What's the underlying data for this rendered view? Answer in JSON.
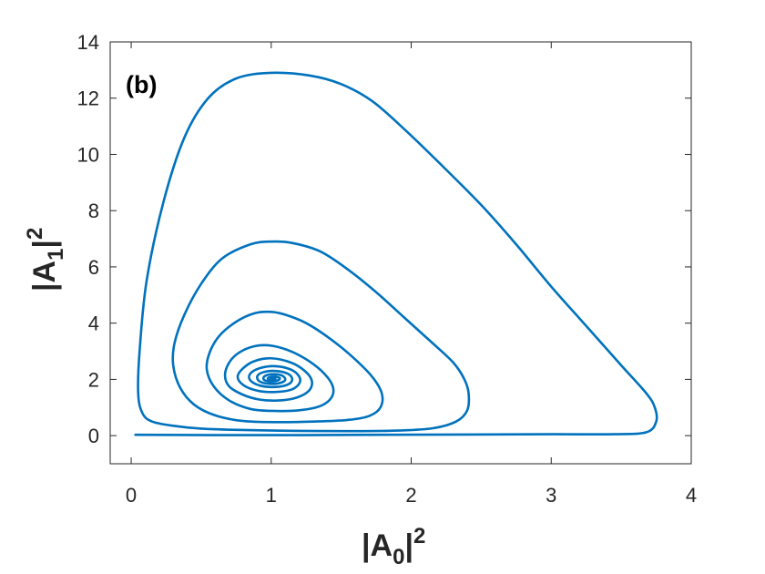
{
  "chart_data": {
    "type": "line",
    "panel_label": "(b)",
    "xlabel": {
      "base": "|A",
      "sub": "0",
      "tail": "|",
      "sup": "2"
    },
    "ylabel": {
      "base": "|A",
      "sub": "1",
      "tail": "|",
      "sup": "2"
    },
    "xlim": [
      -0.15,
      4
    ],
    "ylim": [
      -1,
      14
    ],
    "xticks": [
      0,
      1,
      2,
      3,
      4
    ],
    "yticks": [
      0,
      2,
      4,
      6,
      8,
      10,
      12,
      14
    ],
    "xtick_labels": [
      "0",
      "1",
      "2",
      "3",
      "4"
    ],
    "ytick_labels": [
      "0",
      "2",
      "4",
      "6",
      "8",
      "10",
      "12",
      "14"
    ],
    "grid": false,
    "line_color": "#0072BD",
    "series": [
      {
        "points": [
          [
            0.03,
            0.03
          ],
          [
            0.6,
            0.02
          ],
          [
            1.2,
            0.02
          ],
          [
            1.8,
            0.03
          ],
          [
            2.4,
            0.04
          ],
          [
            3.0,
            0.05
          ],
          [
            3.45,
            0.05
          ],
          [
            3.68,
            0.12
          ],
          [
            3.75,
            0.5
          ],
          [
            3.74,
            1.0
          ],
          [
            3.68,
            1.5
          ],
          [
            3.5,
            2.5
          ],
          [
            3.25,
            3.9
          ],
          [
            3.0,
            5.3
          ],
          [
            2.75,
            6.8
          ],
          [
            2.5,
            8.2
          ],
          [
            2.2,
            9.7
          ],
          [
            1.95,
            10.9
          ],
          [
            1.72,
            11.9
          ],
          [
            1.5,
            12.5
          ],
          [
            1.28,
            12.8
          ],
          [
            1.0,
            12.9
          ],
          [
            0.75,
            12.7
          ],
          [
            0.55,
            12.0
          ],
          [
            0.38,
            10.6
          ],
          [
            0.23,
            8.3
          ],
          [
            0.11,
            5.5
          ],
          [
            0.06,
            3.0
          ],
          [
            0.05,
            1.5
          ],
          [
            0.08,
            0.8
          ],
          [
            0.15,
            0.5
          ],
          [
            0.3,
            0.35
          ],
          [
            0.5,
            0.25
          ],
          [
            0.8,
            0.2
          ],
          [
            1.2,
            0.17
          ],
          [
            1.6,
            0.16
          ],
          [
            1.9,
            0.18
          ],
          [
            2.15,
            0.26
          ],
          [
            2.32,
            0.5
          ],
          [
            2.4,
            0.9
          ],
          [
            2.41,
            1.5
          ],
          [
            2.38,
            2.0
          ],
          [
            2.3,
            2.6
          ],
          [
            2.15,
            3.3
          ],
          [
            1.95,
            4.2
          ],
          [
            1.75,
            5.1
          ],
          [
            1.55,
            5.9
          ],
          [
            1.35,
            6.55
          ],
          [
            1.15,
            6.85
          ],
          [
            1.0,
            6.9
          ],
          [
            0.85,
            6.8
          ],
          [
            0.65,
            6.3
          ],
          [
            0.5,
            5.4
          ],
          [
            0.38,
            4.3
          ],
          [
            0.31,
            3.3
          ],
          [
            0.3,
            2.5
          ],
          [
            0.35,
            1.7
          ],
          [
            0.45,
            1.1
          ],
          [
            0.6,
            0.72
          ],
          [
            0.8,
            0.52
          ],
          [
            1.05,
            0.48
          ],
          [
            1.3,
            0.5
          ],
          [
            1.55,
            0.56
          ],
          [
            1.7,
            0.7
          ],
          [
            1.78,
            1.0
          ],
          [
            1.79,
            1.5
          ],
          [
            1.72,
            2.1
          ],
          [
            1.58,
            2.8
          ],
          [
            1.42,
            3.45
          ],
          [
            1.25,
            4.0
          ],
          [
            1.1,
            4.3
          ],
          [
            1.0,
            4.4
          ],
          [
            0.88,
            4.35
          ],
          [
            0.75,
            4.05
          ],
          [
            0.63,
            3.55
          ],
          [
            0.56,
            2.95
          ],
          [
            0.54,
            2.35
          ],
          [
            0.59,
            1.75
          ],
          [
            0.7,
            1.25
          ],
          [
            0.85,
            0.95
          ],
          [
            1.0,
            0.88
          ],
          [
            1.2,
            0.9
          ],
          [
            1.35,
            1.05
          ],
          [
            1.43,
            1.35
          ],
          [
            1.44,
            1.75
          ],
          [
            1.38,
            2.2
          ],
          [
            1.27,
            2.65
          ],
          [
            1.14,
            3.0
          ],
          [
            1.0,
            3.2
          ],
          [
            0.88,
            3.18
          ],
          [
            0.77,
            2.95
          ],
          [
            0.7,
            2.6
          ],
          [
            0.67,
            2.15
          ],
          [
            0.7,
            1.75
          ],
          [
            0.8,
            1.45
          ],
          [
            0.92,
            1.28
          ],
          [
            1.05,
            1.25
          ],
          [
            1.18,
            1.35
          ],
          [
            1.27,
            1.6
          ],
          [
            1.29,
            1.95
          ],
          [
            1.24,
            2.3
          ],
          [
            1.14,
            2.6
          ],
          [
            1.0,
            2.75
          ],
          [
            0.88,
            2.65
          ],
          [
            0.8,
            2.4
          ],
          [
            0.76,
            2.1
          ],
          [
            0.8,
            1.8
          ],
          [
            0.9,
            1.6
          ],
          [
            1.02,
            1.55
          ],
          [
            1.14,
            1.63
          ],
          [
            1.2,
            1.85
          ],
          [
            1.2,
            2.1
          ],
          [
            1.14,
            2.35
          ],
          [
            1.03,
            2.47
          ],
          [
            0.92,
            2.4
          ],
          [
            0.85,
            2.2
          ],
          [
            0.85,
            1.97
          ],
          [
            0.92,
            1.78
          ],
          [
            1.03,
            1.73
          ],
          [
            1.12,
            1.82
          ],
          [
            1.15,
            2.0
          ],
          [
            1.12,
            2.2
          ],
          [
            1.03,
            2.3
          ],
          [
            0.94,
            2.25
          ],
          [
            0.9,
            2.1
          ],
          [
            0.92,
            1.92
          ],
          [
            1.0,
            1.84
          ],
          [
            1.08,
            1.9
          ],
          [
            1.1,
            2.02
          ],
          [
            1.07,
            2.15
          ],
          [
            1.0,
            2.18
          ],
          [
            0.95,
            2.1
          ],
          [
            0.95,
            1.98
          ],
          [
            1.0,
            1.92
          ],
          [
            1.05,
            1.97
          ],
          [
            1.06,
            2.05
          ],
          [
            1.02,
            2.1
          ],
          [
            0.98,
            2.06
          ],
          [
            0.98,
            2.0
          ],
          [
            1.01,
            1.97
          ],
          [
            1.03,
            2.01
          ],
          [
            1.01,
            2.04
          ],
          [
            1.0,
            2.01
          ]
        ]
      }
    ]
  }
}
